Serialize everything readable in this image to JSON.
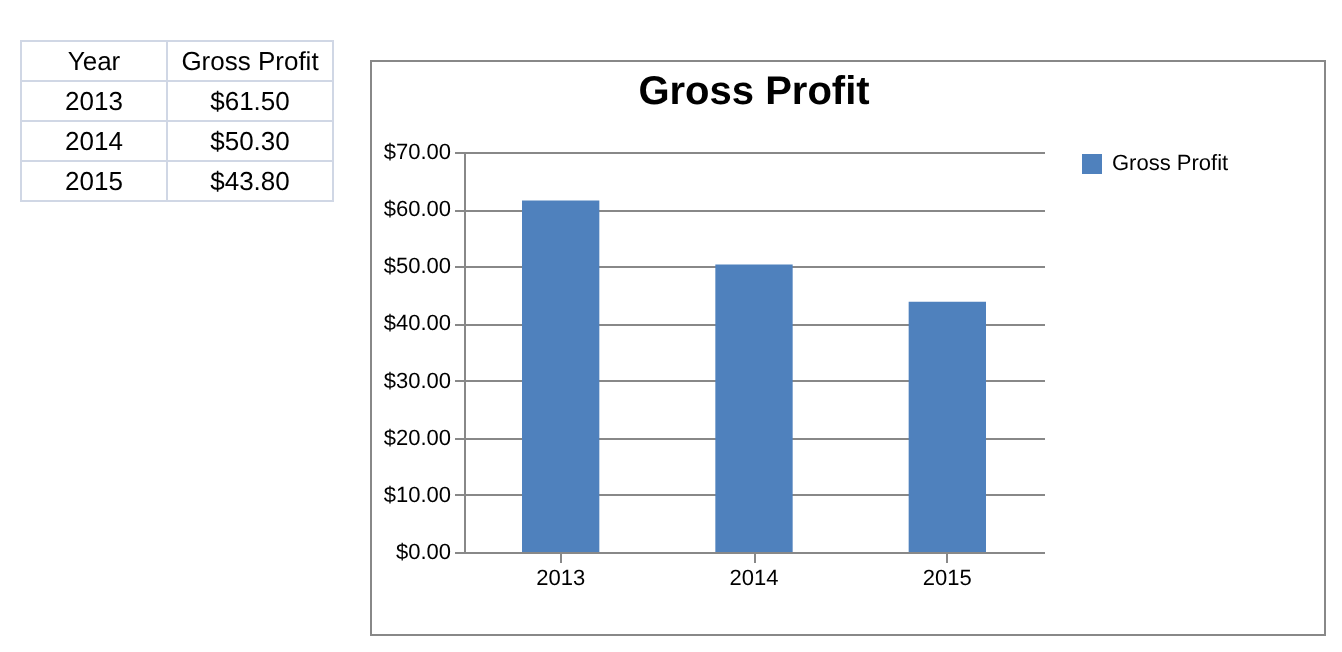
{
  "chart_data": [
    {
      "type": "other",
      "annotations": [
        "Year",
        "Gross Profit",
        "2013",
        "$61.50",
        "2014",
        "$50.30",
        "2015",
        "$43.80"
      ]
    },
    {
      "type": "bar",
      "title": "Gross Profit",
      "categories": [
        "2013",
        "2014",
        "2015"
      ],
      "series": [
        {
          "name": "Gross Profit",
          "color": "#4f81bd",
          "values": [
            61.5,
            50.3,
            43.8
          ]
        }
      ],
      "ylim": [
        0,
        70
      ],
      "yticks": [
        {
          "value": 0,
          "label": "$0.00"
        },
        {
          "value": 10,
          "label": "$10.00"
        },
        {
          "value": 20,
          "label": "$20.00"
        },
        {
          "value": 30,
          "label": "$30.00"
        },
        {
          "value": 40,
          "label": "$40.00"
        },
        {
          "value": 50,
          "label": "$50.00"
        },
        {
          "value": 60,
          "label": "$60.00"
        },
        {
          "value": 70,
          "label": "$70.00"
        }
      ],
      "grid": "y",
      "legend": "right"
    }
  ]
}
